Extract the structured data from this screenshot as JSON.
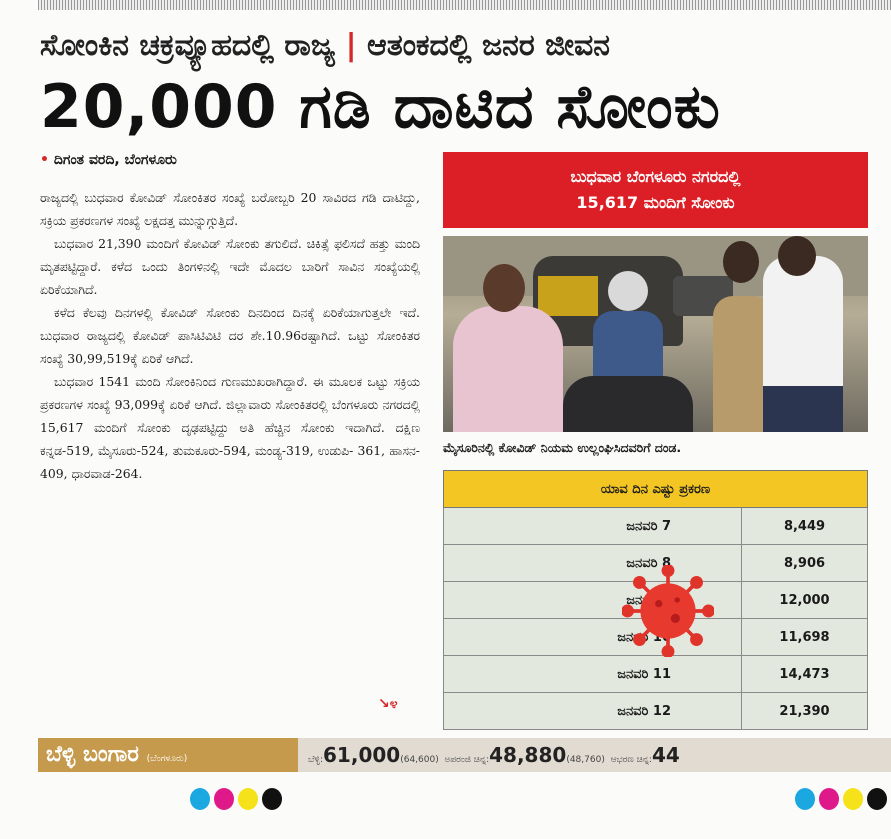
{
  "headline": {
    "kicker_left": "ಸೋಂಕಿನ ಚಕ್ರವ್ಯೂಹದಲ್ಲಿ ರಾಜ್ಯ",
    "separator": "|",
    "kicker_right": "ಆತಂಕದಲ್ಲಿ ಜನರ ಜೀವನ",
    "main": "20,000 ಗಡಿ ದಾಟಿದ ಸೋಂಕು"
  },
  "byline": "ದಿಗಂತ ವರದಿ, ಬೆಂಗಳೂರು",
  "body": [
    "ರಾಜ್ಯದಲ್ಲಿ ಬುಧವಾರ ಕೋವಿಡ್ ಸೋಂಕಿತರ ಸಂಖ್ಯೆ ಬರೋಬ್ಬರಿ 20 ಸಾವಿರದ ಗಡಿ ದಾಟಿದ್ದು, ಸಕ್ರಿಯ ಪ್ರಕರಣಗಳ ಸಂಖ್ಯೆ ಲಕ್ಷದತ್ತ ಮುನ್ನುಗ್ಗುತ್ತಿದೆ.",
    "ಬುಧವಾರ 21,390 ಮಂದಿಗೆ ಕೋವಿಡ್ ಸೋಂಕು ತಗುಲಿದೆ. ಚಿಕಿತ್ಸೆ ಫಲಿಸದೆ ಹತ್ತು ಮಂದಿ ಮೃತಪಟ್ಟಿದ್ದಾರೆ. ಕಳೆದ ಒಂದು ತಿಂಗಳಿನಲ್ಲಿ ಇದೇ ಮೊದಲ ಬಾರಿಗೆ ಸಾವಿನ ಸಂಖ್ಯೆಯಲ್ಲಿ ಏರಿಕೆಯಾಗಿದೆ.",
    "ಕಳೆದ ಕೆಲವು ದಿನಗಳಲ್ಲಿ ಕೋವಿಡ್ ಸೋಂಕು ದಿನದಿಂದ ದಿನಕ್ಕೆ ಏರಿಕೆಯಾಗುತ್ತಲೇ ಇದೆ. ಬುಧವಾರ ರಾಜ್ಯದಲ್ಲಿ ಕೋವಿಡ್ ಪಾಸಿಟಿವಿಟಿ ದರ ಶೇ.10.96ರಷ್ಟಾಗಿದೆ. ಒಟ್ಟು ಸೋಂಕಿತರ ಸಂಖ್ಯೆ 30,99,519ಕ್ಕೆ ಏರಿಕೆ ಆಗಿದೆ.",
    "ಬುಧವಾರ 1541 ಮಂದಿ ಸೋಂಕಿನಿಂದ ಗುಣಮುಖರಾಗಿದ್ದಾರೆ. ಈ ಮೂಲಕ ಒಟ್ಟು ಸಕ್ರಿಯ ಪ್ರಕರಣಗಳ ಸಂಖ್ಯೆ 93,099ಕ್ಕೆ ಏರಿಕೆ ಆಗಿದೆ. ಜಿಲ್ಲಾವಾರು ಸೋಂಕಿತರಲ್ಲಿ ಬೆಂಗಳೂರು ನಗರದಲ್ಲಿ 15,617 ಮಂದಿಗೆ ಸೋಂಕು ದೃಢಪಟ್ಟಿದ್ದು ಅತಿ ಹೆಚ್ಚಿನ ಸೋಂಕು ಇದಾಗಿದೆ. ದಕ್ಷಿಣ ಕನ್ನಡ-519, ಮೈಸೂರು-524, ತುಮಕೂರು-594, ಮಂಡ್ಯ-319, ಉಡುಪಿ- 361, ಹಾಸನ- 409, ಧಾರವಾಡ-264."
  ],
  "continued_marker": "↘೪",
  "highlight_box": {
    "line1": "ಬುಧವಾರ ಬೆಂಗಳೂರು ನಗರದಲ್ಲಿ",
    "line2": "15,617 ಮಂದಿಗೆ ಸೋಂಕು",
    "color": "#dc1f26"
  },
  "photo_caption": "ಮೈಸೂರಿನಲ್ಲಿ ಕೋವಿಡ್ ನಿಯಮ ಉಲ್ಲಂಘಿಸಿದವರಿಗೆ ದಂಡ.",
  "cases_table": {
    "title": "ಯಾವ ದಿನ ಎಷ್ಟು ಪ್ರಕರಣ",
    "rows": [
      {
        "date": "ಜನವರಿ 7",
        "cases": "8,449"
      },
      {
        "date": "ಜನವರಿ 8",
        "cases": "8,906"
      },
      {
        "date": "ಜನವರಿ 9",
        "cases": "12,000"
      },
      {
        "date": "ಜನವರಿ 10",
        "cases": "11,698"
      },
      {
        "date": "ಜನವರಿ 11",
        "cases": "14,473"
      },
      {
        "date": "ಜನವರಿ 12",
        "cases": "21,390"
      }
    ],
    "header_color": "#f3c623"
  },
  "market_strip": {
    "label": "ಬೆಳ್ಳಿ ಬಂಗಾರ",
    "label_city": "(ಬೆಂಗಳೂರು)",
    "items": [
      {
        "name": "ಬೆಳ್ಳಿ:",
        "value": "61,000",
        "prev": "(64,600)"
      },
      {
        "name": "ಅಪರಂಜಿ ಚಿನ್ನ:",
        "value": "48,880",
        "prev": "(48,760)"
      },
      {
        "name": "ಆಭರಣ ಚಿನ್ನ:",
        "value": "44",
        "prev": ""
      }
    ]
  },
  "registration_colors": [
    "#1ba8e0",
    "#e0198a",
    "#f5e21a",
    "#111111"
  ]
}
